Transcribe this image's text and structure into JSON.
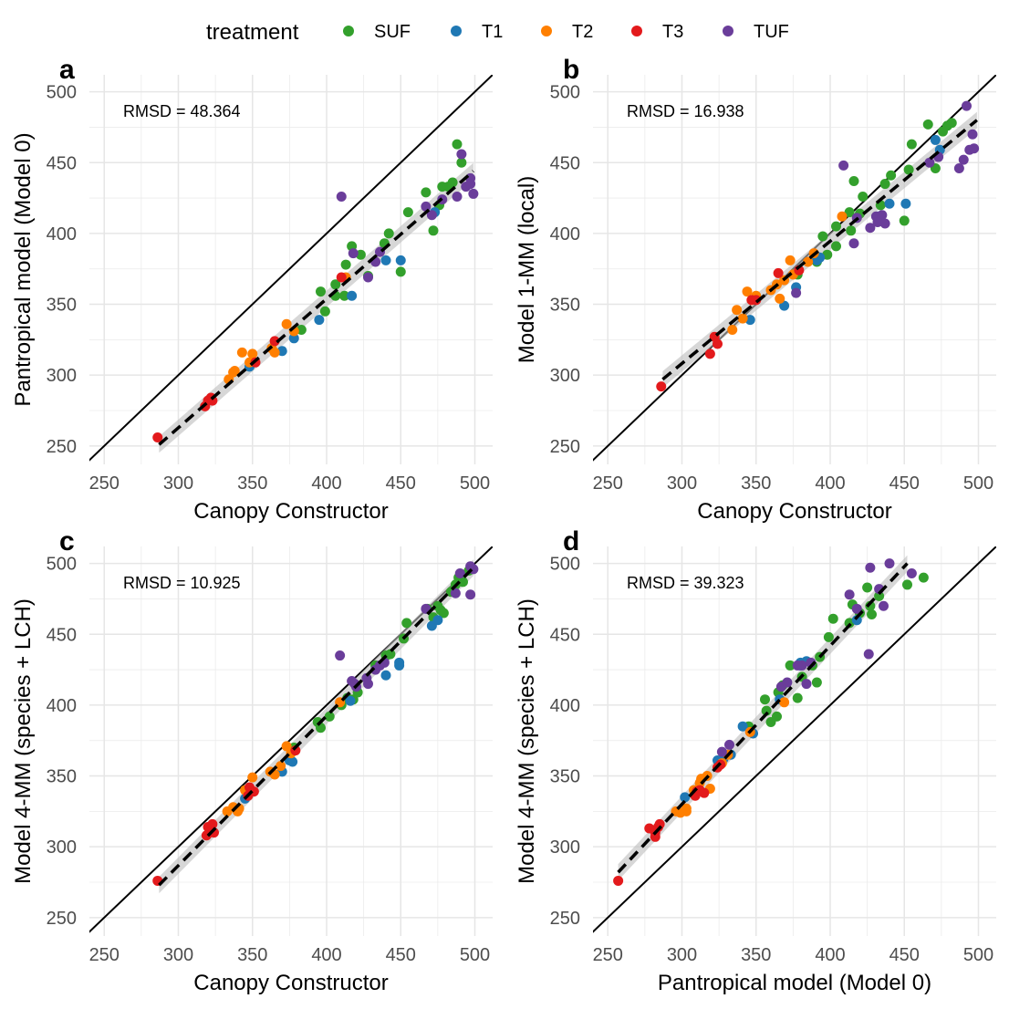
{
  "legend": {
    "title": "treatment",
    "items": [
      {
        "label": "SUF",
        "color": "#33a02c"
      },
      {
        "label": "T1",
        "color": "#1f78b4"
      },
      {
        "label": "T2",
        "color": "#ff7f00"
      },
      {
        "label": "T3",
        "color": "#e31a1c"
      },
      {
        "label": "TUF",
        "color": "#6a3d9a"
      }
    ]
  },
  "chart_data": [
    {
      "type": "scatter",
      "panel": "a",
      "rmsd_label": "RMSD = 48.364",
      "xlabel": "Canopy Constructor",
      "ylabel": "Pantropical model (Model 0)",
      "xlim": [
        240,
        512
      ],
      "ylim": [
        237,
        512
      ],
      "xticks": [
        250,
        300,
        350,
        400,
        450,
        500
      ],
      "yticks": [
        250,
        300,
        350,
        400,
        450,
        500
      ],
      "fit": {
        "x": [
          287,
          499
        ],
        "y": [
          251,
          444
        ]
      },
      "points": {
        "SUF": [
          [
            396,
            359
          ],
          [
            399,
            345
          ],
          [
            406,
            356
          ],
          [
            406,
            364
          ],
          [
            412,
            356
          ],
          [
            413,
            378
          ],
          [
            417,
            391
          ],
          [
            423,
            385
          ],
          [
            428,
            370
          ],
          [
            439,
            393
          ],
          [
            442,
            400
          ],
          [
            450,
            373
          ],
          [
            455,
            415
          ],
          [
            467,
            429
          ],
          [
            472,
            402
          ],
          [
            476,
            420
          ],
          [
            478,
            433
          ],
          [
            482,
            433
          ],
          [
            485,
            436
          ],
          [
            488,
            463
          ],
          [
            491,
            450
          ],
          [
            383,
            332
          ]
        ],
        "T1": [
          [
            348,
            306
          ],
          [
            370,
            317
          ],
          [
            378,
            326
          ],
          [
            395,
            339
          ],
          [
            417,
            356
          ],
          [
            440,
            381
          ],
          [
            450,
            381
          ],
          [
            473,
            415
          ]
        ],
        "T2": [
          [
            338,
            303
          ],
          [
            343,
            316
          ],
          [
            348,
            309
          ],
          [
            350,
            315
          ],
          [
            363,
            319
          ],
          [
            365,
            316
          ],
          [
            373,
            336
          ],
          [
            378,
            331
          ],
          [
            413,
            369
          ],
          [
            337,
            302
          ],
          [
            334,
            297
          ]
        ],
        "T3": [
          [
            286,
            256
          ],
          [
            318,
            278
          ],
          [
            320,
            282
          ],
          [
            322,
            284
          ],
          [
            323,
            282
          ],
          [
            352,
            309
          ],
          [
            365,
            324
          ],
          [
            410,
            369
          ]
        ],
        "TUF": [
          [
            410,
            426
          ],
          [
            418,
            386
          ],
          [
            428,
            369
          ],
          [
            433,
            380
          ],
          [
            436,
            387
          ],
          [
            467,
            419
          ],
          [
            471,
            413
          ],
          [
            478,
            424
          ],
          [
            488,
            426
          ],
          [
            491,
            456
          ],
          [
            494,
            433
          ],
          [
            497,
            439
          ],
          [
            499,
            428
          ],
          [
            497,
            435
          ]
        ]
      }
    },
    {
      "type": "scatter",
      "panel": "b",
      "rmsd_label": "RMSD = 16.938",
      "xlabel": "Canopy Constructor",
      "ylabel": "Model 1-MM (local)",
      "xlim": [
        240,
        512
      ],
      "ylim": [
        237,
        512
      ],
      "xticks": [
        250,
        300,
        350,
        400,
        450,
        500
      ],
      "yticks": [
        250,
        300,
        350,
        400,
        450,
        500
      ],
      "fit": {
        "x": [
          287,
          499
        ],
        "y": [
          297,
          480
        ]
      },
      "points": {
        "SUF": [
          [
            395,
            398
          ],
          [
            398,
            385
          ],
          [
            404,
            405
          ],
          [
            404,
            391
          ],
          [
            413,
            415
          ],
          [
            414,
            402
          ],
          [
            416,
            437
          ],
          [
            420,
            414
          ],
          [
            422,
            426
          ],
          [
            434,
            420
          ],
          [
            437,
            435
          ],
          [
            441,
            441
          ],
          [
            450,
            409
          ],
          [
            453,
            445
          ],
          [
            455,
            463
          ],
          [
            466,
            477
          ],
          [
            471,
            446
          ],
          [
            476,
            472
          ],
          [
            479,
            476
          ],
          [
            482,
            478
          ],
          [
            378,
            371
          ],
          [
            391,
            380
          ]
        ],
        "T1": [
          [
            346,
            339
          ],
          [
            369,
            349
          ],
          [
            377,
            362
          ],
          [
            391,
            381
          ],
          [
            393,
            383
          ],
          [
            432,
            412
          ],
          [
            440,
            421
          ],
          [
            451,
            421
          ],
          [
            471,
            466
          ],
          [
            474,
            459
          ]
        ],
        "T2": [
          [
            334,
            332
          ],
          [
            337,
            346
          ],
          [
            341,
            340
          ],
          [
            344,
            359
          ],
          [
            347,
            353
          ],
          [
            350,
            356
          ],
          [
            366,
            354
          ],
          [
            369,
            367
          ],
          [
            373,
            381
          ],
          [
            375,
            371
          ],
          [
            408,
            412
          ],
          [
            389,
            386
          ],
          [
            385,
            380
          ],
          [
            360,
            360
          ],
          [
            364,
            364
          ]
        ],
        "T3": [
          [
            286,
            292
          ],
          [
            319,
            315
          ],
          [
            322,
            327
          ],
          [
            324,
            322
          ],
          [
            347,
            353
          ],
          [
            350,
            353
          ],
          [
            365,
            372
          ],
          [
            379,
            374
          ]
        ],
        "TUF": [
          [
            409,
            448
          ],
          [
            416,
            393
          ],
          [
            418,
            411
          ],
          [
            427,
            404
          ],
          [
            431,
            412
          ],
          [
            433,
            410
          ],
          [
            435,
            413
          ],
          [
            437,
            407
          ],
          [
            467,
            450
          ],
          [
            473,
            454
          ],
          [
            487,
            446
          ],
          [
            490,
            452
          ],
          [
            492,
            490
          ],
          [
            494,
            459
          ],
          [
            496,
            470
          ],
          [
            497,
            460
          ],
          [
            377,
            358
          ],
          [
            432,
            408
          ]
        ]
      }
    },
    {
      "type": "scatter",
      "panel": "c",
      "rmsd_label": "RMSD = 10.925",
      "xlabel": "Canopy Constructor",
      "ylabel": "Model 4-MM (species + LCH)",
      "xlim": [
        240,
        512
      ],
      "ylim": [
        237,
        512
      ],
      "xticks": [
        250,
        300,
        350,
        400,
        450,
        500
      ],
      "yticks": [
        250,
        300,
        350,
        400,
        450,
        500
      ],
      "fit": {
        "x": [
          287,
          499
        ],
        "y": [
          273,
          497
        ]
      },
      "points": {
        "SUF": [
          [
            394,
            388
          ],
          [
            396,
            384
          ],
          [
            402,
            392
          ],
          [
            410,
            400
          ],
          [
            414,
            405
          ],
          [
            418,
            404
          ],
          [
            421,
            409
          ],
          [
            433,
            428
          ],
          [
            440,
            435
          ],
          [
            443,
            436
          ],
          [
            452,
            447
          ],
          [
            454,
            458
          ],
          [
            468,
            468
          ],
          [
            472,
            462
          ],
          [
            475,
            470
          ],
          [
            477,
            467
          ],
          [
            479,
            465
          ],
          [
            484,
            480
          ],
          [
            487,
            485
          ],
          [
            489,
            490
          ],
          [
            492,
            487
          ],
          [
            496,
            495
          ],
          [
            378,
            370
          ]
        ],
        "T1": [
          [
            345,
            334
          ],
          [
            370,
            353
          ],
          [
            375,
            361
          ],
          [
            377,
            360
          ],
          [
            416,
            403
          ],
          [
            440,
            421
          ],
          [
            449,
            430
          ],
          [
            471,
            456
          ],
          [
            475,
            460
          ],
          [
            449,
            428
          ]
        ],
        "T2": [
          [
            333,
            325
          ],
          [
            337,
            328
          ],
          [
            340,
            325
          ],
          [
            341,
            327
          ],
          [
            345,
            340
          ],
          [
            350,
            349
          ],
          [
            362,
            353
          ],
          [
            365,
            351
          ],
          [
            373,
            371
          ],
          [
            376,
            366
          ],
          [
            409,
            402
          ],
          [
            369,
            357
          ]
        ],
        "T3": [
          [
            286,
            276
          ],
          [
            319,
            308
          ],
          [
            320,
            314
          ],
          [
            321,
            310
          ],
          [
            323,
            316
          ],
          [
            324,
            310
          ],
          [
            347,
            336
          ],
          [
            351,
            339
          ],
          [
            379,
            368
          ],
          [
            348,
            342
          ]
        ],
        "TUF": [
          [
            409,
            435
          ],
          [
            417,
            417
          ],
          [
            419,
            415
          ],
          [
            428,
            415
          ],
          [
            433,
            425
          ],
          [
            436,
            428
          ],
          [
            439,
            430
          ],
          [
            467,
            468
          ],
          [
            487,
            479
          ],
          [
            490,
            493
          ],
          [
            497,
            498
          ],
          [
            499,
            496
          ],
          [
            497,
            478
          ],
          [
            420,
            413
          ],
          [
            427,
            419
          ]
        ]
      }
    },
    {
      "type": "scatter",
      "panel": "d",
      "rmsd_label": "RMSD = 39.323",
      "xlabel": "Pantropical model (Model 0)",
      "ylabel": "Model 4-MM (species + LCH)",
      "xlim": [
        240,
        512
      ],
      "ylim": [
        237,
        512
      ],
      "xticks": [
        250,
        300,
        350,
        400,
        450,
        500
      ],
      "yticks": [
        250,
        300,
        350,
        400,
        450,
        500
      ],
      "fit": {
        "x": [
          257,
          452
        ],
        "y": [
          282,
          500
        ]
      },
      "points": {
        "SUF": [
          [
            356,
            404
          ],
          [
            357,
            396
          ],
          [
            360,
            388
          ],
          [
            364,
            392
          ],
          [
            365,
            409
          ],
          [
            368,
            414
          ],
          [
            373,
            428
          ],
          [
            378,
            405
          ],
          [
            381,
            420
          ],
          [
            388,
            428
          ],
          [
            391,
            416
          ],
          [
            393,
            434
          ],
          [
            399,
            448
          ],
          [
            402,
            461
          ],
          [
            413,
            458
          ],
          [
            415,
            471
          ],
          [
            420,
            465
          ],
          [
            425,
            483
          ],
          [
            427,
            470
          ],
          [
            428,
            464
          ],
          [
            433,
            477
          ],
          [
            452,
            485
          ],
          [
            463,
            490
          ],
          [
            345,
            385
          ]
        ],
        "T1": [
          [
            302,
            335
          ],
          [
            324,
            361
          ],
          [
            328,
            362
          ],
          [
            333,
            365
          ],
          [
            341,
            385
          ],
          [
            348,
            380
          ],
          [
            366,
            404
          ],
          [
            380,
            430
          ],
          [
            384,
            431
          ],
          [
            418,
            460
          ],
          [
            380,
            428
          ]
        ],
        "T2": [
          [
            296,
            325
          ],
          [
            299,
            324
          ],
          [
            303,
            325
          ],
          [
            303,
            327
          ],
          [
            308,
            340
          ],
          [
            313,
            348
          ],
          [
            317,
            350
          ],
          [
            319,
            341
          ],
          [
            327,
            359
          ],
          [
            331,
            365
          ],
          [
            369,
            402
          ],
          [
            346,
            381
          ],
          [
            312,
            345
          ]
        ],
        "T3": [
          [
            257,
            276
          ],
          [
            278,
            313
          ],
          [
            282,
            310
          ],
          [
            282,
            307
          ],
          [
            284,
            314
          ],
          [
            285,
            316
          ],
          [
            309,
            336
          ],
          [
            310,
            339
          ],
          [
            324,
            356
          ],
          [
            326,
            358
          ],
          [
            315,
            338
          ],
          [
            312,
            340
          ]
        ],
        "TUF": [
          [
            327,
            367
          ],
          [
            332,
            372
          ],
          [
            367,
            413
          ],
          [
            371,
            416
          ],
          [
            381,
            428
          ],
          [
            384,
            415
          ],
          [
            387,
            430
          ],
          [
            413,
            478
          ],
          [
            418,
            468
          ],
          [
            426,
            436
          ],
          [
            427,
            497
          ],
          [
            433,
            482
          ],
          [
            436,
            470
          ],
          [
            440,
            500
          ],
          [
            455,
            493
          ],
          [
            378,
            428
          ]
        ]
      }
    }
  ]
}
